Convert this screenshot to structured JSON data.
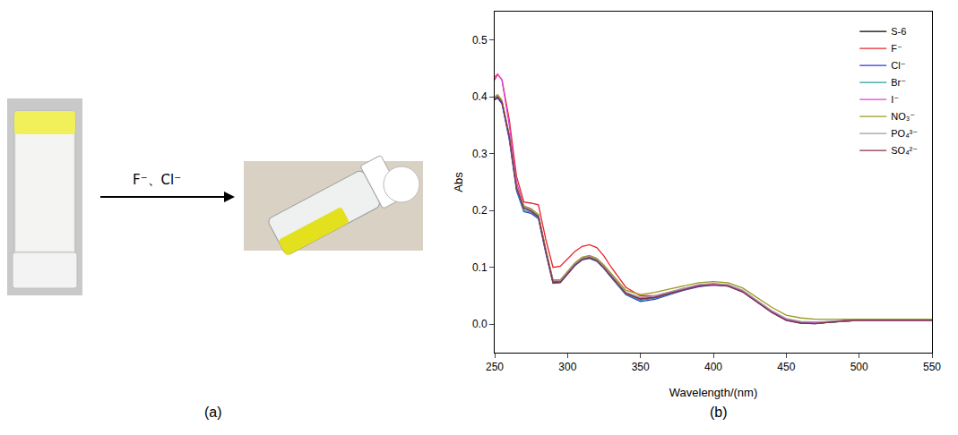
{
  "chart_data": {
    "type": "line",
    "x_label": "Wavelength/(nm)",
    "y_label": "Abs",
    "x": [
      250,
      252,
      255,
      260,
      265,
      270,
      275,
      280,
      285,
      290,
      295,
      300,
      305,
      310,
      315,
      320,
      325,
      330,
      340,
      350,
      360,
      370,
      380,
      390,
      400,
      410,
      420,
      430,
      440,
      450,
      460,
      470,
      480,
      490,
      500,
      525,
      550
    ],
    "series": [
      {
        "name": "S-6",
        "color": "#000000",
        "values": [
          0.395,
          0.4,
          0.39,
          0.33,
          0.24,
          0.205,
          0.2,
          0.19,
          0.13,
          0.075,
          0.075,
          0.09,
          0.105,
          0.115,
          0.118,
          0.113,
          0.1,
          0.085,
          0.055,
          0.045,
          0.048,
          0.055,
          0.062,
          0.068,
          0.07,
          0.068,
          0.058,
          0.04,
          0.022,
          0.008,
          0.003,
          0.002,
          0.004,
          0.006,
          0.007,
          0.007,
          0.007
        ]
      },
      {
        "name": "F⁻",
        "color": "#e8242b",
        "values": [
          0.43,
          0.44,
          0.43,
          0.36,
          0.26,
          0.215,
          0.213,
          0.21,
          0.15,
          0.1,
          0.102,
          0.115,
          0.128,
          0.137,
          0.14,
          0.135,
          0.12,
          0.1,
          0.065,
          0.05,
          0.05,
          0.056,
          0.063,
          0.068,
          0.07,
          0.068,
          0.058,
          0.04,
          0.022,
          0.008,
          0.003,
          0.002,
          0.004,
          0.006,
          0.007,
          0.007,
          0.007
        ]
      },
      {
        "name": "Cl⁻",
        "color": "#2b3bd6",
        "values": [
          0.395,
          0.398,
          0.388,
          0.325,
          0.235,
          0.198,
          0.195,
          0.186,
          0.126,
          0.072,
          0.073,
          0.088,
          0.103,
          0.113,
          0.116,
          0.111,
          0.098,
          0.082,
          0.052,
          0.04,
          0.044,
          0.052,
          0.06,
          0.066,
          0.069,
          0.067,
          0.057,
          0.039,
          0.021,
          0.007,
          0.002,
          0.001,
          0.004,
          0.006,
          0.007,
          0.007,
          0.007
        ]
      },
      {
        "name": "Br⁻",
        "color": "#2a9d9d",
        "values": [
          0.398,
          0.402,
          0.392,
          0.33,
          0.238,
          0.2,
          0.197,
          0.188,
          0.128,
          0.073,
          0.074,
          0.089,
          0.104,
          0.114,
          0.117,
          0.112,
          0.099,
          0.083,
          0.053,
          0.042,
          0.046,
          0.053,
          0.061,
          0.067,
          0.07,
          0.068,
          0.058,
          0.04,
          0.022,
          0.008,
          0.003,
          0.002,
          0.004,
          0.006,
          0.007,
          0.007,
          0.007
        ]
      },
      {
        "name": "I⁻",
        "color": "#e03ee0",
        "values": [
          0.435,
          0.44,
          0.43,
          0.35,
          0.25,
          0.208,
          0.203,
          0.192,
          0.132,
          0.077,
          0.077,
          0.092,
          0.107,
          0.117,
          0.12,
          0.115,
          0.102,
          0.087,
          0.056,
          0.046,
          0.049,
          0.056,
          0.063,
          0.069,
          0.071,
          0.069,
          0.059,
          0.041,
          0.023,
          0.009,
          0.004,
          0.003,
          0.005,
          0.007,
          0.007,
          0.007,
          0.007
        ]
      },
      {
        "name": "NO₃⁻",
        "color": "#9a9a1e",
        "values": [
          0.4,
          0.404,
          0.394,
          0.333,
          0.243,
          0.208,
          0.203,
          0.193,
          0.133,
          0.078,
          0.078,
          0.093,
          0.108,
          0.118,
          0.121,
          0.116,
          0.104,
          0.089,
          0.06,
          0.052,
          0.056,
          0.062,
          0.068,
          0.073,
          0.075,
          0.073,
          0.064,
          0.047,
          0.03,
          0.016,
          0.011,
          0.009,
          0.009,
          0.009,
          0.009,
          0.009,
          0.009
        ]
      },
      {
        "name": "PO₄³⁻",
        "color": "#9e9e9e",
        "values": [
          0.397,
          0.401,
          0.391,
          0.331,
          0.241,
          0.206,
          0.201,
          0.191,
          0.131,
          0.076,
          0.076,
          0.091,
          0.106,
          0.116,
          0.119,
          0.114,
          0.101,
          0.086,
          0.056,
          0.047,
          0.05,
          0.057,
          0.064,
          0.07,
          0.072,
          0.07,
          0.06,
          0.042,
          0.024,
          0.01,
          0.005,
          0.004,
          0.005,
          0.007,
          0.007,
          0.007,
          0.007
        ]
      },
      {
        "name": "SO₄²⁻",
        "color": "#8b2f45",
        "values": [
          0.396,
          0.4,
          0.39,
          0.33,
          0.24,
          0.204,
          0.199,
          0.189,
          0.129,
          0.074,
          0.074,
          0.089,
          0.104,
          0.114,
          0.117,
          0.112,
          0.099,
          0.084,
          0.054,
          0.044,
          0.047,
          0.054,
          0.061,
          0.067,
          0.069,
          0.067,
          0.057,
          0.039,
          0.021,
          0.007,
          0.002,
          0.001,
          0.004,
          0.006,
          0.007,
          0.007,
          0.007
        ]
      }
    ],
    "xlim": [
      250,
      550
    ],
    "xticks": [
      250,
      300,
      350,
      400,
      450,
      500,
      550
    ],
    "ylim": [
      -0.05,
      0.55
    ],
    "yticks": [
      {
        "value": 0,
        "label": "0.0"
      },
      {
        "value": 0.1,
        "label": "0.1"
      },
      {
        "value": 0.2,
        "label": "0.2"
      },
      {
        "value": 0.3,
        "label": "0.3"
      },
      {
        "value": 0.4,
        "label": "0.4"
      },
      {
        "value": 0.5,
        "label": "0.5"
      }
    ],
    "grid": false,
    "legend": "top-right"
  },
  "figure": {
    "panel_a": {
      "label": "(a)",
      "arrow_text": "F⁻、Cl⁻"
    },
    "panel_b": {
      "label": "(b)"
    }
  }
}
